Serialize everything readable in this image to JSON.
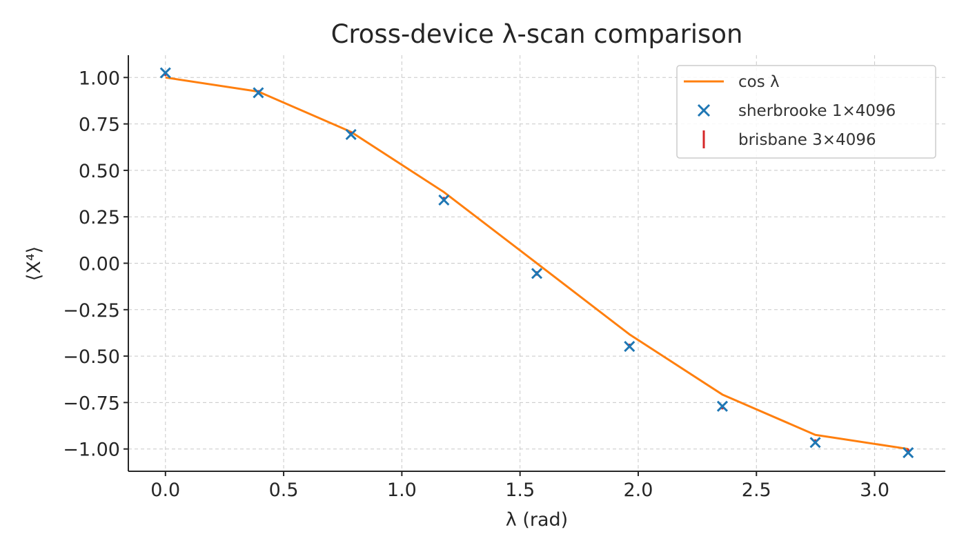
{
  "chart_data": {
    "type": "scatter",
    "title": "Cross-device λ-scan comparison",
    "xlabel": "λ (rad)",
    "ylabel": "⟨X⁴⟩",
    "xlim": [
      -0.157,
      3.299
    ],
    "ylim": [
      -1.12,
      1.12
    ],
    "xticks": [
      0.0,
      0.5,
      1.0,
      1.5,
      2.0,
      2.5,
      3.0
    ],
    "xtick_labels": [
      "0.0",
      "0.5",
      "1.0",
      "1.5",
      "2.0",
      "2.5",
      "3.0"
    ],
    "yticks": [
      1.0,
      0.75,
      0.5,
      0.25,
      0.0,
      -0.25,
      -0.5,
      -0.75,
      -1.0
    ],
    "ytick_labels": [
      "1.00",
      "0.75",
      "0.50",
      "0.25",
      "0.00",
      "−0.25",
      "−0.50",
      "−0.75",
      "−1.00"
    ],
    "grid": true,
    "legend_position": "top-right",
    "x": [
      0.0,
      0.393,
      0.785,
      1.178,
      1.571,
      1.963,
      2.356,
      2.749,
      3.142
    ],
    "series": [
      {
        "name": "cos λ",
        "kind": "line",
        "color": "#ff7f0e",
        "values": [
          1.0,
          0.924,
          0.707,
          0.383,
          0.0,
          -0.383,
          -0.707,
          -0.924,
          -1.0
        ]
      },
      {
        "name": "sherbrooke 1×4096",
        "kind": "scatter",
        "marker": "x",
        "color": "#1f77b4",
        "values": [
          1.025,
          0.918,
          0.693,
          0.34,
          -0.055,
          -0.448,
          -0.77,
          -0.965,
          -1.02
        ]
      },
      {
        "name": "brisbane 3×4096",
        "kind": "errorbar",
        "marker": "vline",
        "color": "#d62728",
        "values": [
          1.02,
          0.92,
          0.696,
          0.345,
          -0.055,
          -0.445,
          -0.775,
          -0.96,
          -1.01
        ],
        "errors": [
          0.012,
          0.012,
          0.012,
          0.012,
          0.012,
          0.012,
          0.012,
          0.012,
          0.012
        ]
      }
    ]
  }
}
